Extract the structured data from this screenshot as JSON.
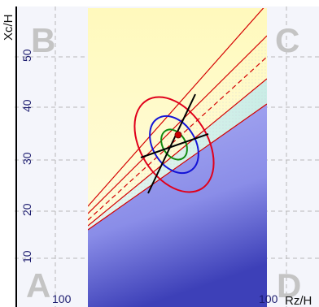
{
  "chart_data": {
    "type": "scatter",
    "xlabel": "Rz/H",
    "ylabel": "Xc/H",
    "x_tick_labels": [
      "100",
      "100"
    ],
    "y_ticks": [
      10,
      20,
      30,
      40,
      50
    ],
    "ylim": [
      5,
      58
    ],
    "grid": true,
    "quadrant_labels": [
      "A",
      "B",
      "C",
      "D"
    ],
    "center_point": {
      "x": 0.5,
      "y": 34.5
    },
    "ellipse_levels": 3,
    "colors": {
      "plot_bg": "#f4f5fb",
      "upper_zone": "#fff9c2",
      "middle_zone": "#d9f2ec",
      "lower_zone": "#7f83e6",
      "red_lines": "#d40000",
      "ellipse_outer": "#e0001b",
      "ellipse_middle": "#1414d6",
      "ellipse_inner": "#108a10",
      "axes_cross": "#000000",
      "center": "#cc0000"
    }
  }
}
